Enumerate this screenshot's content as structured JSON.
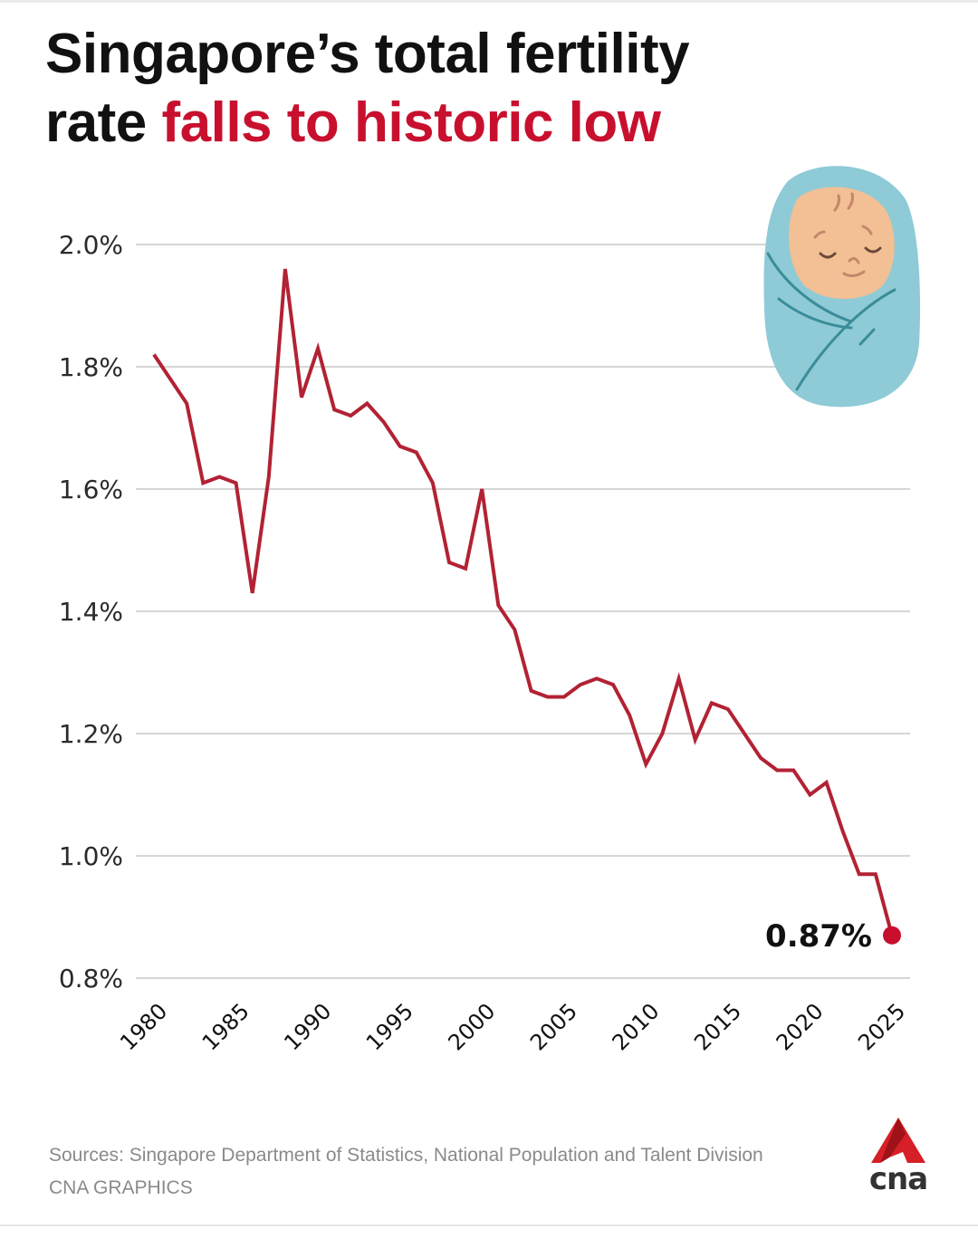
{
  "header": {
    "title_part1": "Singapore’s total fertility",
    "title_part2": "rate ",
    "title_highlight": "falls to historic low"
  },
  "colors": {
    "line": "#b22234",
    "highlight": "#c8102e",
    "grid": "#d6d6d6",
    "baby_blanket": "#8ecbd6",
    "baby_face": "#f3bf94"
  },
  "illustration": {
    "icon": "swaddled-baby-icon"
  },
  "chart_data": {
    "type": "line",
    "title": "Singapore’s total fertility rate falls to historic low",
    "xlabel": "",
    "ylabel": "",
    "xlim": [
      1980,
      2025
    ],
    "ylim": [
      0.8,
      2.0
    ],
    "grid": true,
    "y_ticks": [
      2.0,
      1.8,
      1.6,
      1.4,
      1.2,
      1.0,
      0.8
    ],
    "y_tick_labels": [
      "2.0%",
      "1.8%",
      "1.6%",
      "1.4%",
      "1.2%",
      "1.0%",
      "0.8%"
    ],
    "x_ticks": [
      1980,
      1985,
      1990,
      1995,
      2000,
      2005,
      2010,
      2015,
      2020,
      2025
    ],
    "x_tick_labels": [
      "1980",
      "1985",
      "1990",
      "1995",
      "2000",
      "2005",
      "2010",
      "2015",
      "2020",
      "2025"
    ],
    "series": [
      {
        "name": "Total fertility rate",
        "x": [
          1980,
          1981,
          1982,
          1983,
          1984,
          1985,
          1986,
          1987,
          1988,
          1989,
          1990,
          1991,
          1992,
          1993,
          1994,
          1995,
          1996,
          1997,
          1998,
          1999,
          2000,
          2001,
          2002,
          2003,
          2004,
          2005,
          2006,
          2007,
          2008,
          2009,
          2010,
          2011,
          2012,
          2013,
          2014,
          2015,
          2016,
          2017,
          2018,
          2019,
          2020,
          2021,
          2022,
          2023,
          2024,
          2025
        ],
        "values": [
          1.82,
          1.78,
          1.74,
          1.61,
          1.62,
          1.61,
          1.43,
          1.62,
          1.96,
          1.75,
          1.83,
          1.73,
          1.72,
          1.74,
          1.71,
          1.67,
          1.66,
          1.61,
          1.48,
          1.47,
          1.6,
          1.41,
          1.37,
          1.27,
          1.26,
          1.26,
          1.28,
          1.29,
          1.28,
          1.23,
          1.15,
          1.2,
          1.29,
          1.19,
          1.25,
          1.24,
          1.2,
          1.16,
          1.14,
          1.14,
          1.1,
          1.12,
          1.04,
          0.97,
          0.97,
          0.87
        ]
      }
    ],
    "annotations": [
      {
        "x": 2025,
        "value": 0.87,
        "label": "0.87%"
      }
    ]
  },
  "footer": {
    "source": "Sources: Singapore Department of Statistics, National Population and Talent Division",
    "credit": "CNA GRAPHICS",
    "logo_text": "cna"
  }
}
